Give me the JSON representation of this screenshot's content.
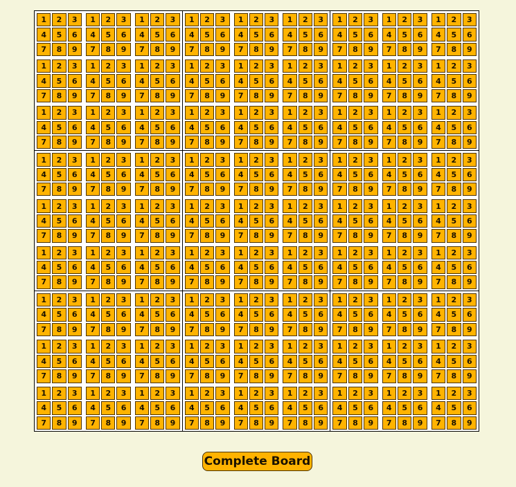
{
  "board": {
    "candidates": [
      "1",
      "2",
      "3",
      "4",
      "5",
      "6",
      "7",
      "8",
      "9"
    ]
  },
  "complete_button": {
    "label": "Complete Board"
  },
  "colors": {
    "background": "#f5f5dc",
    "candidate_fill": "#ffb300",
    "candidate_border": "#4a3100",
    "grid_line": "#000000"
  }
}
